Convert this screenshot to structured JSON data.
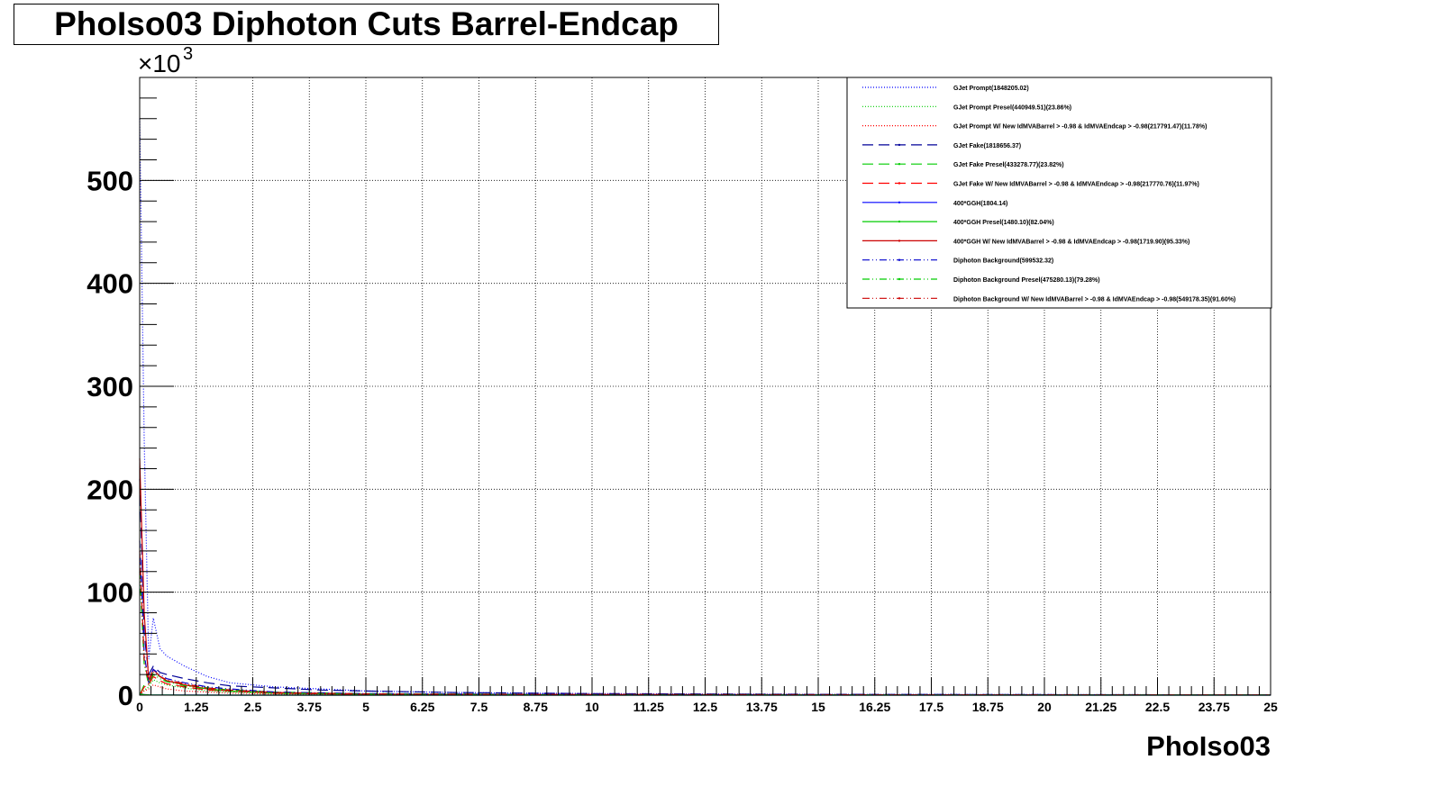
{
  "chart_data": {
    "type": "line",
    "title": "PhoIso03 Diphoton Cuts Barrel-Endcap",
    "xlabel": "PhoIso03",
    "ylabel": "",
    "y_exponent_label": "×10",
    "y_exponent_power": "3",
    "xlim": [
      0,
      25
    ],
    "ylim": [
      0,
      600
    ],
    "y_scale_note": "values in units of 10^3",
    "grid": true,
    "legend_placement": "top-right",
    "x_ticks": [
      "0",
      "1.25",
      "2.5",
      "3.75",
      "5",
      "6.25",
      "7.5",
      "8.75",
      "10",
      "11.25",
      "12.5",
      "13.75",
      "15",
      "16.25",
      "17.5",
      "18.75",
      "20",
      "21.25",
      "22.5",
      "23.75",
      "25"
    ],
    "x_tick_values": [
      0,
      1.25,
      2.5,
      3.75,
      5,
      6.25,
      7.5,
      8.75,
      10,
      11.25,
      12.5,
      13.75,
      15,
      16.25,
      17.5,
      18.75,
      20,
      21.25,
      22.5,
      23.75,
      25
    ],
    "y_ticks": [
      "0",
      "100",
      "200",
      "300",
      "400",
      "500"
    ],
    "y_tick_values": [
      0,
      100,
      200,
      300,
      400,
      500
    ],
    "series": [
      {
        "name": "GJet Prompt(1848205.02)",
        "color": "#0000ff",
        "dash": "1,2",
        "x": [
          0,
          0.1,
          0.2,
          0.3,
          0.45,
          0.6,
          1.0,
          1.5,
          2.0,
          3.0,
          4.0,
          5.0,
          7.0,
          10.0,
          15.0,
          25.0
        ],
        "y": [
          560,
          250,
          35,
          75,
          45,
          38,
          28,
          18,
          12,
          8,
          6,
          4,
          2.5,
          1.5,
          0.8,
          0.3
        ]
      },
      {
        "name": "GJet Prompt Presel(440949.51)(23.86%)",
        "color": "#00cc00",
        "dash": "1,2",
        "x": [
          0,
          0.1,
          0.2,
          0.3,
          0.45,
          0.6,
          1.0,
          1.5,
          2.0,
          3.0,
          5.0,
          10.0,
          25.0
        ],
        "y": [
          0,
          5,
          8,
          15,
          12,
          10,
          7,
          4,
          3,
          1.5,
          0.8,
          0.3,
          0.1
        ]
      },
      {
        "name": "GJet Prompt W/ New IdMVABarrel > -0.98 & IdMVAEndcap > -0.98(217791.47)(11.78%)",
        "color": "#ff0000",
        "dash": "1,2",
        "x": [
          0,
          0.1,
          0.2,
          0.3,
          0.45,
          0.6,
          1.0,
          1.5,
          2.0,
          3.0,
          5.0,
          10.0,
          25.0
        ],
        "y": [
          0,
          4,
          6,
          10,
          8,
          6,
          4,
          3,
          2,
          1,
          0.5,
          0.2,
          0.1
        ]
      },
      {
        "name": "GJet Fake(1818656.37)",
        "color": "#000099",
        "dash": "12,6",
        "x": [
          0,
          0.1,
          0.2,
          0.3,
          0.45,
          0.6,
          1.0,
          1.5,
          2.0,
          3.0,
          4.0,
          5.0,
          7.0,
          10.0,
          15.0,
          25.0
        ],
        "y": [
          210,
          60,
          20,
          28,
          22,
          20,
          16,
          12,
          9,
          7,
          5,
          4,
          2.5,
          1.5,
          0.8,
          0.3
        ]
      },
      {
        "name": "GJet Fake Presel(433278.77)(23.82%)",
        "color": "#00cc00",
        "dash": "12,6",
        "x": [
          0,
          0.1,
          0.2,
          0.3,
          0.45,
          0.6,
          1.0,
          1.5,
          2.0,
          3.0,
          5.0,
          10.0,
          25.0
        ],
        "y": [
          0,
          10,
          12,
          22,
          18,
          14,
          10,
          7,
          5,
          3,
          1.5,
          0.5,
          0.1
        ]
      },
      {
        "name": "GJet Fake W/ New IdMVABarrel > -0.98 & IdMVAEndcap > -0.98(217770.76)(11.97%)",
        "color": "#ff0000",
        "dash": "12,6",
        "x": [
          0,
          0.1,
          0.2,
          0.3,
          0.45,
          0.6,
          1.0,
          1.5,
          2.0,
          3.0,
          5.0,
          10.0,
          25.0
        ],
        "y": [
          0,
          8,
          10,
          18,
          14,
          11,
          8,
          5,
          4,
          2,
          1,
          0.3,
          0.1
        ]
      },
      {
        "name": "400*GGH(1804.14)",
        "color": "#0000ff",
        "dash": "",
        "x": [
          0,
          0.1,
          0.2,
          0.3,
          0.6,
          1.0,
          2.0,
          5.0,
          25.0
        ],
        "y": [
          1.5,
          0.5,
          0.3,
          0.2,
          0.1,
          0.05,
          0.02,
          0.01,
          0
        ]
      },
      {
        "name": "400*GGH Presel(1480.10)(82.04%)",
        "color": "#00cc00",
        "dash": "",
        "x": [
          0,
          0.1,
          0.2,
          0.3,
          0.6,
          1.0,
          2.0,
          5.0,
          25.0
        ],
        "y": [
          1.2,
          0.4,
          0.25,
          0.15,
          0.08,
          0.04,
          0.02,
          0.01,
          0
        ]
      },
      {
        "name": "400*GGH W/ New IdMVABarrel > -0.98 & IdMVAEndcap > -0.98(1719.90)(95.33%)",
        "color": "#cc0000",
        "dash": "",
        "x": [
          0,
          0.1,
          0.2,
          0.3,
          0.45,
          0.6,
          1.0,
          1.5,
          2.0,
          3.0,
          5.0,
          25.0
        ],
        "y": [
          230,
          80,
          15,
          25,
          18,
          14,
          10,
          6,
          4,
          2,
          0.8,
          0.1
        ]
      },
      {
        "name": "Diphoton Background(599532.32)",
        "color": "#0000cc",
        "dash": "8,3,1,3,1,3",
        "x": [
          0,
          0.1,
          0.2,
          0.3,
          0.45,
          0.6,
          1.0,
          1.5,
          2.0,
          3.0,
          5.0,
          10.0,
          25.0
        ],
        "y": [
          150,
          40,
          12,
          25,
          20,
          16,
          12,
          8,
          6,
          3,
          1.5,
          0.5,
          0.1
        ]
      },
      {
        "name": "Diphoton Background Presel(475280.13)(79.28%)",
        "color": "#00cc00",
        "dash": "8,3,1,3,1,3",
        "x": [
          0,
          0.1,
          0.2,
          0.3,
          0.45,
          0.6,
          1.0,
          1.5,
          2.0,
          3.0,
          5.0,
          10.0,
          25.0
        ],
        "y": [
          120,
          30,
          10,
          20,
          16,
          13,
          9,
          6,
          4,
          2,
          1,
          0.3,
          0.1
        ]
      },
      {
        "name": "Diphoton Background W/ New IdMVABarrel > -0.98 & IdMVAEndcap > -0.98(549178.35)(91.60%)",
        "color": "#cc0000",
        "dash": "8,3,1,3,1,3",
        "x": [
          0,
          0.1,
          0.2,
          0.3,
          0.45,
          0.6,
          1.0,
          1.5,
          2.0,
          3.0,
          5.0,
          10.0,
          25.0
        ],
        "y": [
          140,
          35,
          11,
          23,
          18,
          15,
          11,
          7,
          5,
          2.5,
          1.2,
          0.4,
          0.1
        ]
      }
    ]
  }
}
